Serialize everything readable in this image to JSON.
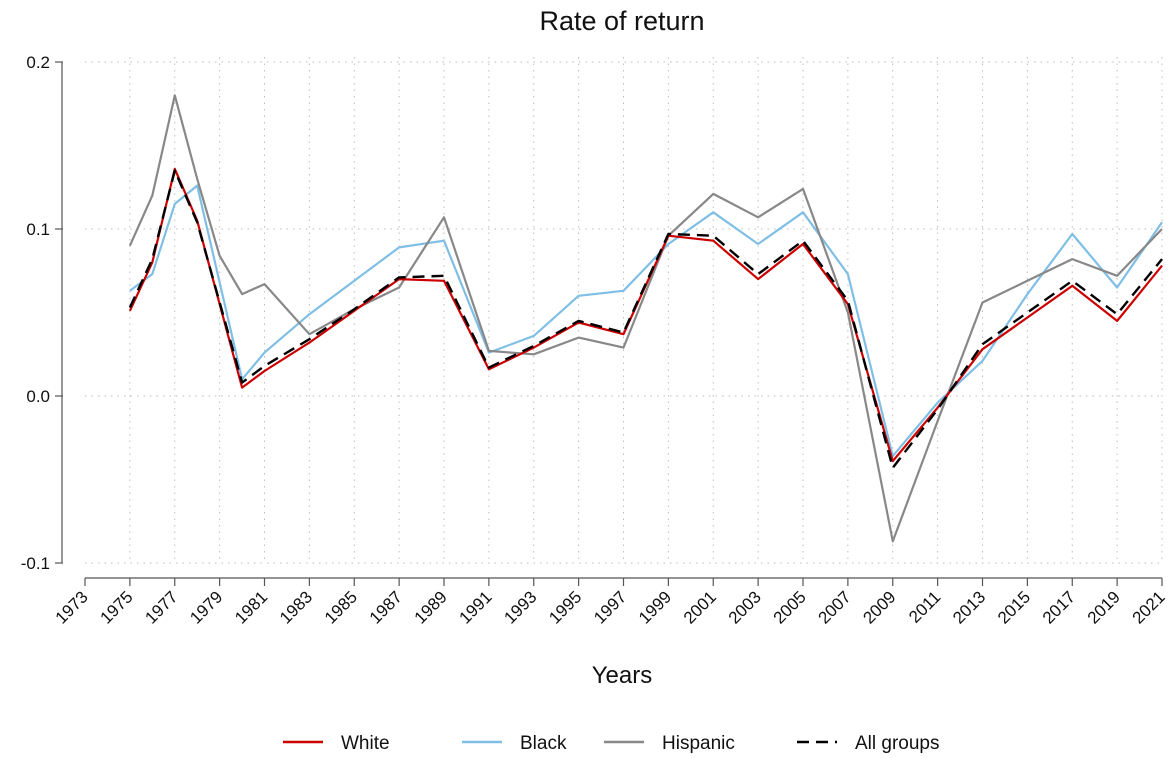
{
  "chart_data": {
    "type": "line",
    "title": "Rate of return",
    "xlabel": "Years",
    "ylabel": "",
    "xlim": [
      1973,
      2021
    ],
    "ylim": [
      -0.1,
      0.2
    ],
    "x_ticks": [
      "1973",
      "1975",
      "1977",
      "1979",
      "1981",
      "1983",
      "1985",
      "1987",
      "1989",
      "1991",
      "1993",
      "1995",
      "1997",
      "1999",
      "2001",
      "2003",
      "2005",
      "2007",
      "2009",
      "2011",
      "2013",
      "2015",
      "2017",
      "2019",
      "2021"
    ],
    "y_ticks": [
      "-0.1",
      "0.0",
      "0.1",
      "0.2"
    ],
    "grid": true,
    "legend_position": "bottom",
    "series": [
      {
        "name": "White",
        "color": "#cc0000",
        "dash": "solid",
        "points": [
          [
            1975,
            0.051
          ],
          [
            1976,
            0.08
          ],
          [
            1977,
            0.136
          ],
          [
            1978,
            0.105
          ],
          [
            1980,
            0.005
          ],
          [
            1981,
            0.015
          ],
          [
            1983,
            0.032
          ],
          [
            1985,
            0.051
          ],
          [
            1987,
            0.07
          ],
          [
            1989,
            0.069
          ],
          [
            1991,
            0.016
          ],
          [
            1993,
            0.029
          ],
          [
            1995,
            0.044
          ],
          [
            1997,
            0.037
          ],
          [
            1999,
            0.096
          ],
          [
            2001,
            0.093
          ],
          [
            2003,
            0.07
          ],
          [
            2005,
            0.091
          ],
          [
            2007,
            0.055
          ],
          [
            2009,
            -0.039
          ],
          [
            2011,
            -0.007
          ],
          [
            2013,
            0.028
          ],
          [
            2015,
            0.047
          ],
          [
            2017,
            0.066
          ],
          [
            2019,
            0.045
          ],
          [
            2021,
            0.078
          ]
        ]
      },
      {
        "name": "Black",
        "color": "#7fbfe6",
        "dash": "solid",
        "points": [
          [
            1975,
            0.063
          ],
          [
            1976,
            0.073
          ],
          [
            1977,
            0.115
          ],
          [
            1978,
            0.126
          ],
          [
            1980,
            0.01
          ],
          [
            1981,
            0.026
          ],
          [
            1983,
            0.049
          ],
          [
            1985,
            0.069
          ],
          [
            1987,
            0.089
          ],
          [
            1989,
            0.093
          ],
          [
            1991,
            0.026
          ],
          [
            1993,
            0.036
          ],
          [
            1995,
            0.06
          ],
          [
            1997,
            0.063
          ],
          [
            1999,
            0.091
          ],
          [
            2001,
            0.11
          ],
          [
            2003,
            0.091
          ],
          [
            2005,
            0.11
          ],
          [
            2007,
            0.073
          ],
          [
            2009,
            -0.036
          ],
          [
            2011,
            -0.004
          ],
          [
            2013,
            0.021
          ],
          [
            2015,
            0.061
          ],
          [
            2017,
            0.097
          ],
          [
            2019,
            0.065
          ],
          [
            2021,
            0.104
          ]
        ]
      },
      {
        "name": "Hispanic",
        "color": "#888888",
        "dash": "solid",
        "points": [
          [
            1975,
            0.09
          ],
          [
            1976,
            0.12
          ],
          [
            1977,
            0.18
          ],
          [
            1978,
            0.13
          ],
          [
            1979,
            0.084
          ],
          [
            1980,
            0.061
          ],
          [
            1981,
            0.067
          ],
          [
            1983,
            0.037
          ],
          [
            1985,
            0.052
          ],
          [
            1987,
            0.065
          ],
          [
            1989,
            0.107
          ],
          [
            1991,
            0.027
          ],
          [
            1993,
            0.025
          ],
          [
            1995,
            0.035
          ],
          [
            1997,
            0.029
          ],
          [
            1999,
            0.096
          ],
          [
            2001,
            0.121
          ],
          [
            2003,
            0.107
          ],
          [
            2005,
            0.124
          ],
          [
            2007,
            0.05
          ],
          [
            2009,
            -0.087
          ],
          [
            2011,
            -0.015
          ],
          [
            2013,
            0.056
          ],
          [
            2015,
            0.069
          ],
          [
            2017,
            0.082
          ],
          [
            2019,
            0.072
          ],
          [
            2021,
            0.1
          ]
        ]
      },
      {
        "name": "All groups",
        "color": "#000000",
        "dash": "dashed",
        "points": [
          [
            1975,
            0.053
          ],
          [
            1976,
            0.082
          ],
          [
            1977,
            0.135
          ],
          [
            1978,
            0.104
          ],
          [
            1980,
            0.008
          ],
          [
            1981,
            0.018
          ],
          [
            1983,
            0.034
          ],
          [
            1985,
            0.052
          ],
          [
            1987,
            0.071
          ],
          [
            1989,
            0.072
          ],
          [
            1991,
            0.017
          ],
          [
            1993,
            0.03
          ],
          [
            1995,
            0.045
          ],
          [
            1997,
            0.038
          ],
          [
            1999,
            0.097
          ],
          [
            2001,
            0.096
          ],
          [
            2003,
            0.073
          ],
          [
            2005,
            0.093
          ],
          [
            2007,
            0.057
          ],
          [
            2009,
            -0.043
          ],
          [
            2011,
            -0.008
          ],
          [
            2013,
            0.031
          ],
          [
            2015,
            0.05
          ],
          [
            2017,
            0.069
          ],
          [
            2019,
            0.049
          ],
          [
            2021,
            0.082
          ]
        ]
      }
    ]
  }
}
